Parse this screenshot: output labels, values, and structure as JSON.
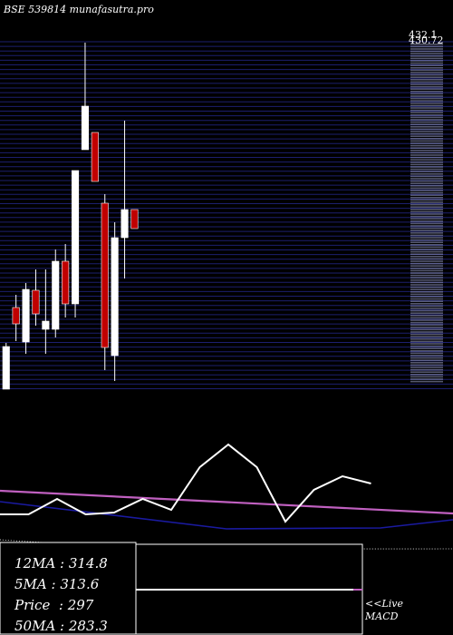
{
  "header": {
    "exchange": "BSE",
    "code": "539814",
    "site": "munafasutra.pro"
  },
  "colors": {
    "background": "#000000",
    "grid": "#1c1f6e",
    "up_candle": "#ffffff",
    "down_candle": "#c00000",
    "price_line": "#ffffff",
    "ma_pink": "#c060c0",
    "ma_blue": "#1a1aa0",
    "box_border": "#ffffff"
  },
  "price_axis": {
    "top_labels": [
      "432.1",
      "430.72"
    ]
  },
  "ma_legend": {
    "ma12": {
      "label": "12MA",
      "value": "314.8"
    },
    "ma5": {
      "label": "5MA",
      "value": "313.6"
    },
    "price": {
      "label": "Price",
      "value": "297"
    },
    "ma50": {
      "label": "50MA",
      "value": "283.3"
    }
  },
  "live_link": {
    "line1": "<<Live",
    "line2": "MACD"
  },
  "chart_data": {
    "type": "candlestick",
    "candles": [
      {
        "dir": "up",
        "open": 1,
        "close": 48,
        "high": 52,
        "low": 1
      },
      {
        "dir": "down",
        "open": 91,
        "close": 73,
        "high": 105,
        "low": 54
      },
      {
        "dir": "up",
        "open": 53,
        "close": 111,
        "high": 118,
        "low": 40
      },
      {
        "dir": "down",
        "open": 110,
        "close": 84,
        "high": 133,
        "low": 71
      },
      {
        "dir": "up",
        "open": 67,
        "close": 76,
        "high": 133,
        "low": 40
      },
      {
        "dir": "up",
        "open": 67,
        "close": 142,
        "high": 155,
        "low": 58
      },
      {
        "dir": "down",
        "open": 142,
        "close": 95,
        "high": 161,
        "low": 80
      },
      {
        "dir": "up",
        "open": 95,
        "close": 242,
        "high": 242,
        "low": 80
      },
      {
        "dir": "up",
        "open": 265,
        "close": 313,
        "high": 383,
        "low": 265
      },
      {
        "dir": "down",
        "open": 284,
        "close": 230,
        "high": 284,
        "low": 230
      },
      {
        "dir": "down",
        "open": 206,
        "close": 47,
        "high": 216,
        "low": 22
      },
      {
        "dir": "up",
        "open": 38,
        "close": 168,
        "high": 185,
        "low": 10
      },
      {
        "dir": "up",
        "open": 168,
        "close": 199,
        "high": 297,
        "low": 123
      },
      {
        "dir": "down",
        "open": 199,
        "close": 178,
        "high": 199,
        "low": 178
      }
    ],
    "indicator_price_line": [
      38,
      38,
      55,
      38,
      40,
      55,
      43,
      90,
      115,
      90,
      30,
      65,
      80,
      72
    ],
    "indicator_ma_pink": [
      64,
      60
    ],
    "indicator_ma_blue": [
      52,
      22,
      23,
      32
    ],
    "macd_zero_line": 0
  }
}
